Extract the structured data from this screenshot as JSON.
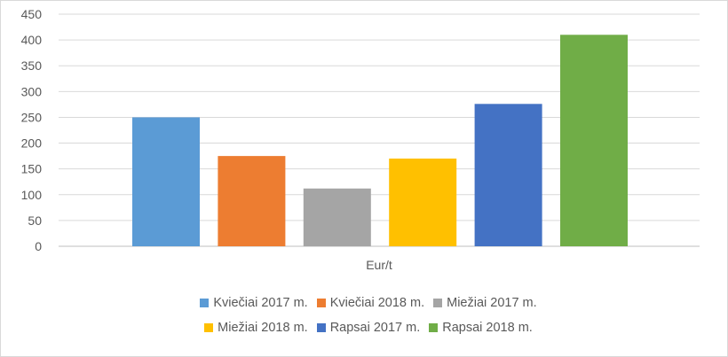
{
  "chart_data": {
    "type": "bar",
    "title": "",
    "xlabel": "",
    "ylabel": "",
    "categories": [
      "Eur/t"
    ],
    "ylim": [
      0,
      450
    ],
    "yticks": [
      0,
      50,
      100,
      150,
      200,
      250,
      300,
      350,
      400,
      450
    ],
    "grid": true,
    "legend_position": "bottom",
    "series": [
      {
        "name": "Kviečiai 2017 m.",
        "values": [
          250
        ],
        "color": "#5b9bd5"
      },
      {
        "name": "Kviečiai 2018 m.",
        "values": [
          175
        ],
        "color": "#ed7d31"
      },
      {
        "name": "Miežiai 2017 m.",
        "values": [
          112
        ],
        "color": "#a5a5a5"
      },
      {
        "name": "Miežiai 2018 m.",
        "values": [
          170
        ],
        "color": "#ffc000"
      },
      {
        "name": "Rapsai 2017 m.",
        "values": [
          276
        ],
        "color": "#4472c4"
      },
      {
        "name": "Rapsai 2018 m.",
        "values": [
          410
        ],
        "color": "#70ad47"
      }
    ]
  }
}
